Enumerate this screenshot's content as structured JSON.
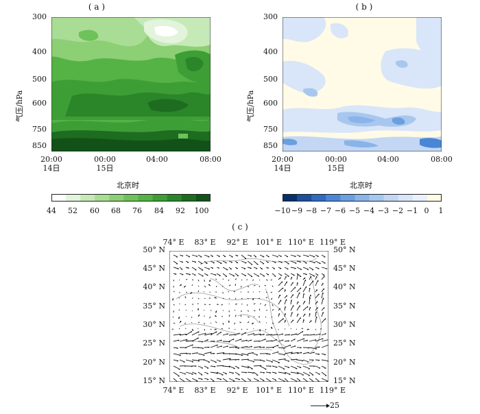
{
  "panel_a": {
    "label": "( a )",
    "ylabel": "气压/hPa",
    "xlabel": "北京时",
    "yticks": [
      "300",
      "400",
      "500",
      "600",
      "750",
      "850"
    ],
    "xticks": [
      {
        "time": "20:00",
        "date": "14日"
      },
      {
        "time": "00:00",
        "date": "15日"
      },
      {
        "time": "04:00",
        "date": ""
      },
      {
        "time": "08:00",
        "date": ""
      }
    ],
    "colorbar_ticks": [
      "44",
      "52",
      "60",
      "68",
      "76",
      "84",
      "92",
      "100"
    ],
    "colors": [
      "#ffffff",
      "#e2f4dc",
      "#c6e9b8",
      "#a9dc94",
      "#8ccf74",
      "#6fc15a",
      "#55b245",
      "#3e9e36",
      "#2b862a",
      "#1d6c20",
      "#125218"
    ]
  },
  "panel_b": {
    "label": "( b )",
    "ylabel": "气压/hPa",
    "xlabel": "北京时",
    "yticks": [
      "300",
      "400",
      "500",
      "600",
      "750",
      "850"
    ],
    "xticks": [
      {
        "time": "20:00",
        "date": "14日"
      },
      {
        "time": "00:00",
        "date": "15日"
      },
      {
        "time": "04:00",
        "date": ""
      },
      {
        "time": "08:00",
        "date": ""
      }
    ],
    "colorbar_ticks": [
      "−10",
      "−9",
      "−8",
      "−7",
      "−6",
      "−5",
      "−4",
      "−3",
      "−2",
      "−1",
      "0",
      "1"
    ],
    "colors": [
      "#08306b",
      "#1c4f9c",
      "#2f6bc0",
      "#4a86d6",
      "#6a9fe0",
      "#8ab4e8",
      "#a8c7ef",
      "#c3d7f4",
      "#d9e5f8",
      "#ebf1fb",
      "#fffbe6"
    ]
  },
  "panel_c": {
    "label": "( c )",
    "lon_ticks": [
      "74° E",
      "83° E",
      "92° E",
      "101° E",
      "110° E",
      "119° E"
    ],
    "lat_ticks": [
      "50° N",
      "45° N",
      "40° N",
      "35° N",
      "30° N",
      "25° N",
      "20° N",
      "15° N"
    ],
    "reference_vector": "25"
  }
}
